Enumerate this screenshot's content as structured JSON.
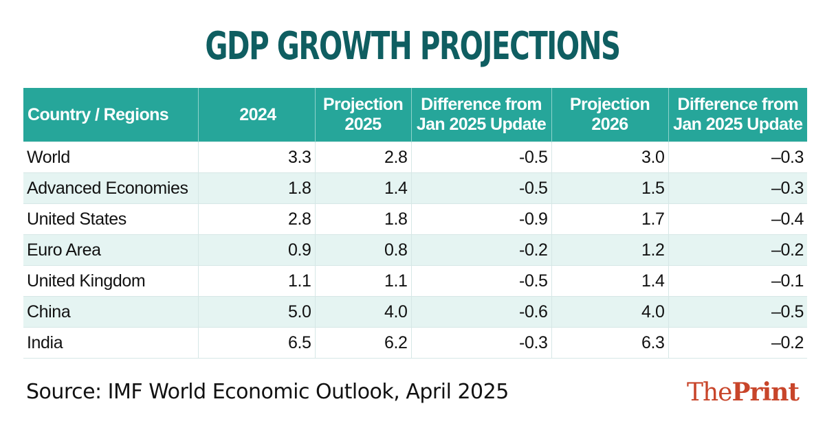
{
  "title": "GDP GROWTH PROJECTIONS",
  "table": {
    "headers": [
      "Country / Regions",
      "2024",
      "Projection 2025",
      "Difference from Jan 2025 Update",
      "Projection 2026",
      "Difference from Jan 2025 Update"
    ],
    "rows": [
      [
        "World",
        "3.3",
        "2.8",
        "-0.5",
        "3.0",
        "–0.3"
      ],
      [
        "Advanced Economies",
        "1.8",
        "1.4",
        "-0.5",
        "1.5",
        "–0.3"
      ],
      [
        "United States",
        "2.8",
        "1.8",
        "-0.9",
        "1.7",
        "–0.4"
      ],
      [
        "Euro Area",
        "0.9",
        "0.8",
        "-0.2",
        "1.2",
        "–0.2"
      ],
      [
        "United Kingdom",
        "1.1",
        "1.1",
        "-0.5",
        "1.4",
        "–0.1"
      ],
      [
        "China",
        "5.0",
        "4.0",
        "-0.6",
        "4.0",
        "–0.5"
      ],
      [
        "India",
        "6.5",
        "6.2",
        "-0.3",
        "6.3",
        "–0.2"
      ]
    ]
  },
  "source": "Source: IMF World Economic Outlook, April 2025",
  "logo": {
    "part1": "The",
    "part2": "Print"
  },
  "colors": {
    "title": "#0f5e61",
    "header_bg": "#26a69a",
    "row_alt": "#e5f4f2",
    "logo": "#c8452a"
  }
}
